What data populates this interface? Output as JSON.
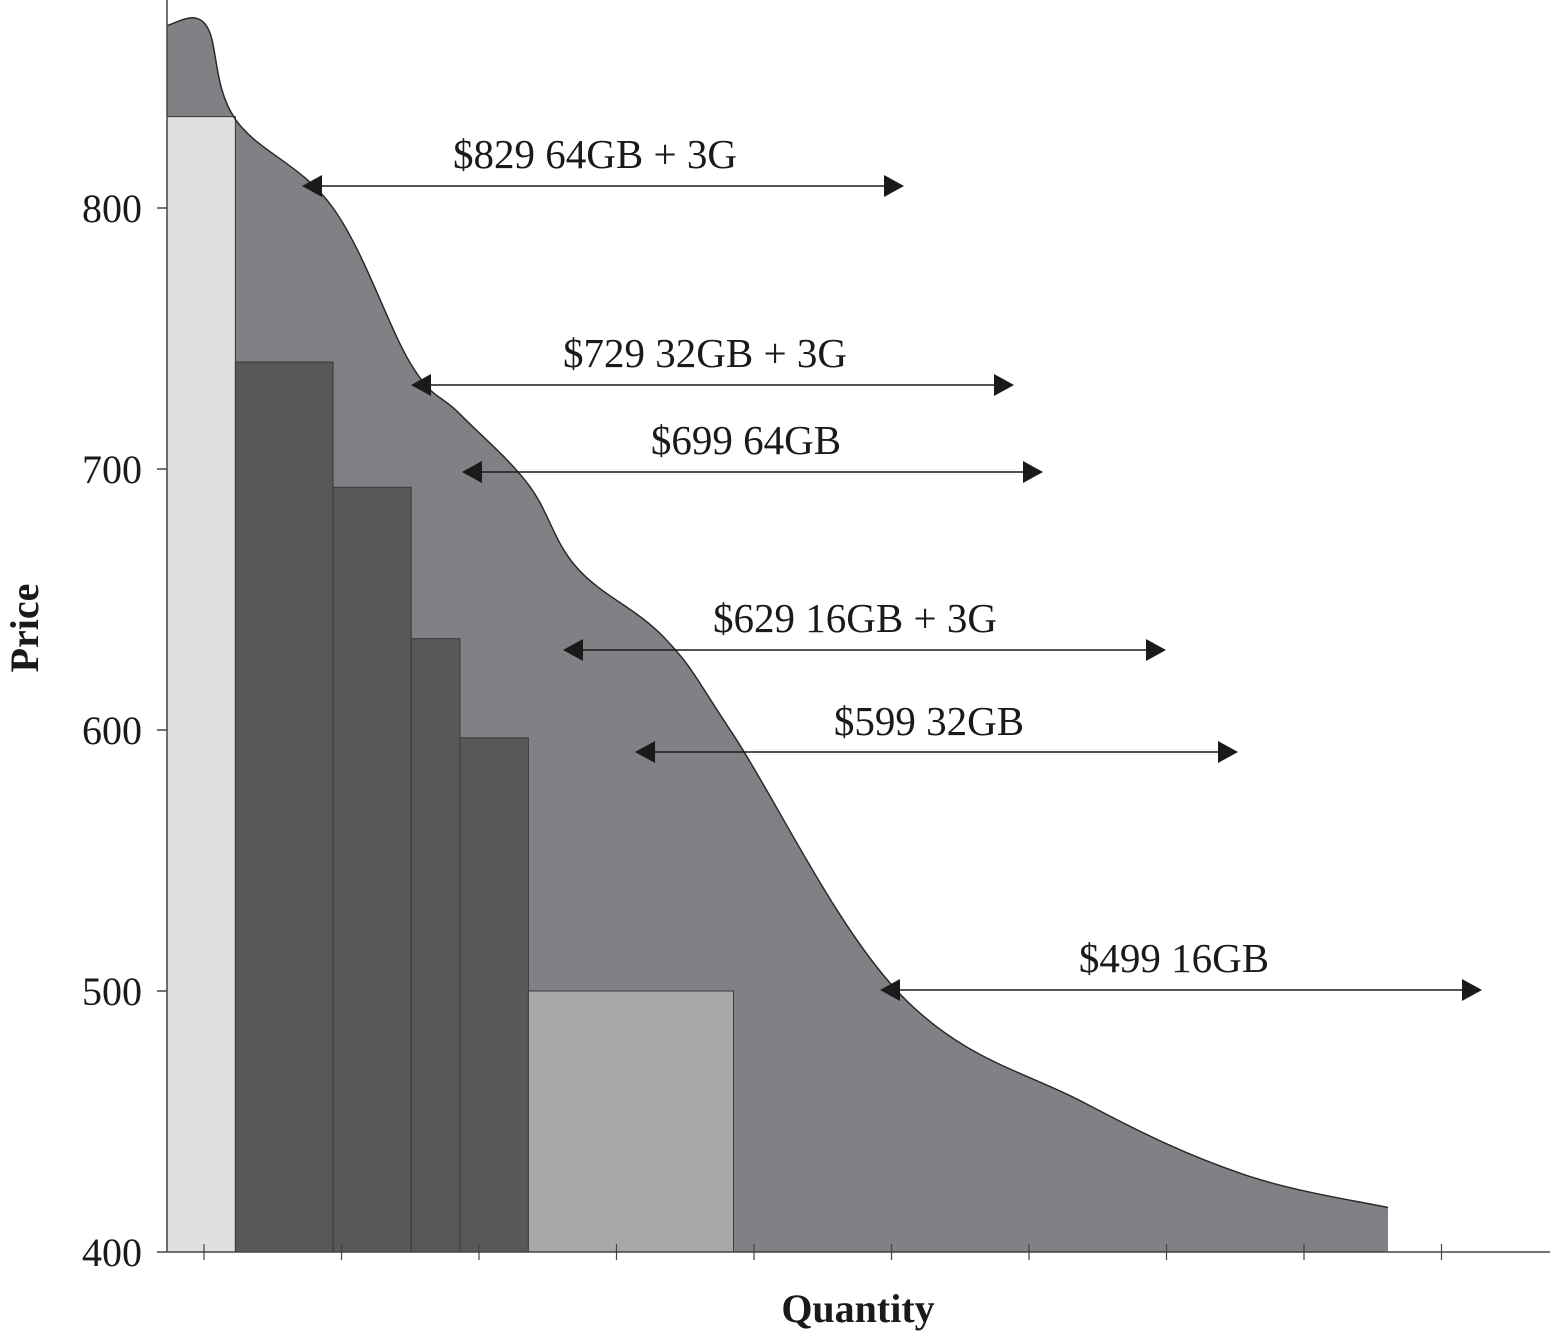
{
  "chart_data": {
    "type": "area",
    "xlabel": "Quantity",
    "ylabel": "Price",
    "ylim": [
      400,
      880
    ],
    "yticks": [
      "400",
      "500",
      "600",
      "700",
      "800"
    ],
    "x_tick_count": 10,
    "x_tick_labels_shown": false,
    "grid": false,
    "demand_curve": {
      "x": [
        0,
        0.4,
        0.7,
        1.7,
        2.5,
        3.0,
        3.7,
        4.2,
        5.1,
        5.8,
        7.5,
        9.4,
        11.0,
        12.5
      ],
      "y": [
        870,
        870,
        834,
        800,
        740,
        721,
        694,
        662,
        635,
        598,
        499,
        457,
        430,
        417
      ]
    },
    "price_tiers": [
      {
        "label": "$829 64GB + 3G",
        "price": 829
      },
      {
        "label": "$729 32GB + 3G",
        "price": 729
      },
      {
        "label": "$699 64GB",
        "price": 699
      },
      {
        "label": "$629 16GB + 3G",
        "price": 629
      },
      {
        "label": "$599 32GB",
        "price": 599
      },
      {
        "label": "$499 16GB",
        "price": 499
      }
    ],
    "blocks": [
      {
        "x0": 0,
        "x1": 0.7,
        "y": 835,
        "shade": "light"
      },
      {
        "x0": 0.7,
        "x1": 1.7,
        "y": 741,
        "shade": "dark"
      },
      {
        "x0": 1.7,
        "x1": 2.5,
        "y": 693,
        "shade": "dark"
      },
      {
        "x0": 2.5,
        "x1": 3.0,
        "y": 635,
        "shade": "dark"
      },
      {
        "x0": 3.0,
        "x1": 3.7,
        "y": 597,
        "shade": "dark"
      },
      {
        "x0": 3.7,
        "x1": 5.8,
        "y": 500,
        "shade": "medium"
      }
    ],
    "colors": {
      "surplus": "#818185",
      "light": "#e0e0e0",
      "dark": "#58585a",
      "medium": "#a8a8ab",
      "axis": "#444444",
      "text": "#1a1a1a"
    }
  }
}
